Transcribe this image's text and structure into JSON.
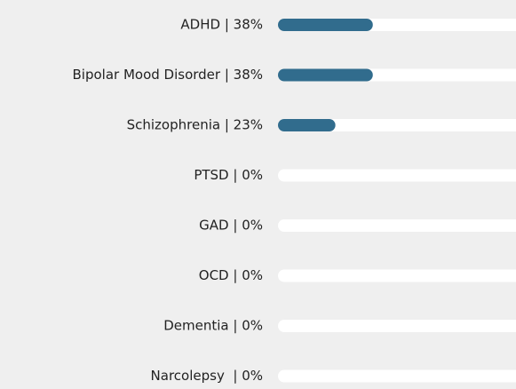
{
  "chart_data": {
    "type": "bar",
    "orientation": "horizontal",
    "categories": [
      "ADHD | 38%",
      "Bipolar Mood Disorder | 38%",
      "Schizophrenia | 23%",
      "PTSD | 0%",
      "GAD | 0%",
      "OCD | 0%",
      "Dementia | 0%",
      "Narcolepsy  | 0%"
    ],
    "values": [
      38,
      38,
      23,
      0,
      0,
      0,
      0,
      0
    ],
    "color": "#316c8d",
    "track_color": "#ffffff",
    "xlim": [
      0,
      100
    ]
  }
}
